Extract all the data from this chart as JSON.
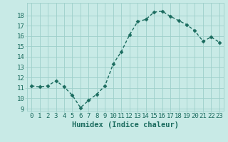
{
  "x": [
    0,
    1,
    2,
    3,
    4,
    5,
    6,
    7,
    8,
    9,
    10,
    11,
    12,
    13,
    14,
    15,
    16,
    17,
    18,
    19,
    20,
    21,
    22,
    23
  ],
  "y": [
    11.2,
    11.1,
    11.2,
    11.7,
    11.1,
    10.3,
    9.1,
    9.8,
    10.4,
    11.2,
    13.3,
    14.5,
    16.1,
    17.4,
    17.6,
    18.3,
    18.4,
    17.9,
    17.5,
    17.1,
    16.5,
    15.5,
    15.9,
    15.4
  ],
  "line_color": "#1a6b5e",
  "marker": "D",
  "markersize": 2.5,
  "linewidth": 1.0,
  "background_color": "#c8eae6",
  "grid_color": "#9ecfca",
  "xlabel": "Humidex (Indice chaleur)",
  "xlim": [
    -0.5,
    23.5
  ],
  "ylim": [
    8.8,
    19.2
  ],
  "yticks": [
    9,
    10,
    11,
    12,
    13,
    14,
    15,
    16,
    17,
    18
  ],
  "xtick_labels": [
    "0",
    "1",
    "2",
    "3",
    "4",
    "5",
    "6",
    "7",
    "8",
    "9",
    "10",
    "11",
    "12",
    "13",
    "14",
    "15",
    "16",
    "17",
    "18",
    "19",
    "20",
    "21",
    "22",
    "23"
  ],
  "tick_fontsize": 6.5,
  "xlabel_fontsize": 7.5
}
